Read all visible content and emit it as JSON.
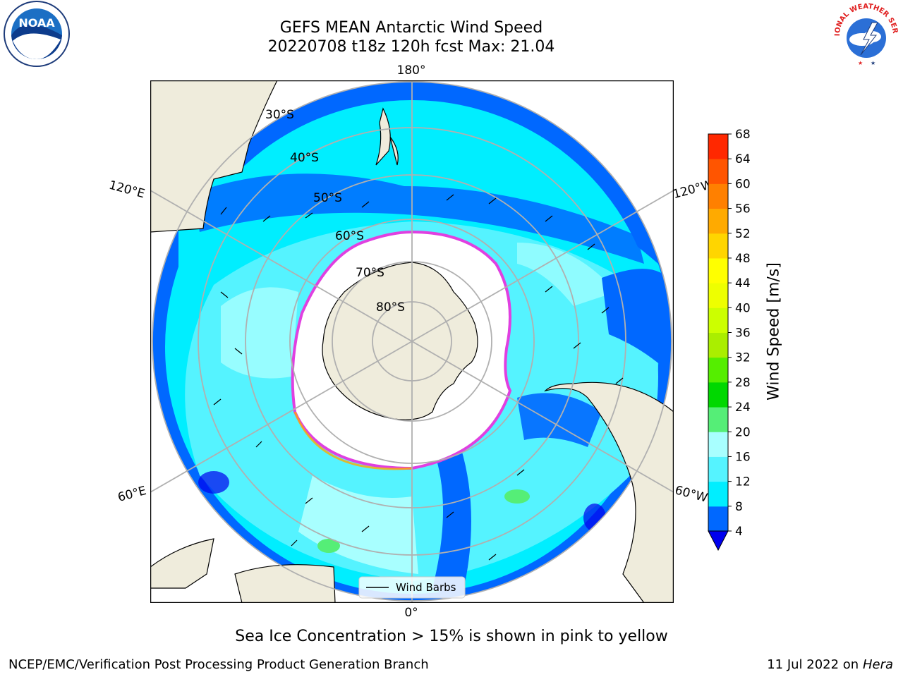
{
  "title": {
    "line1": "GEFS MEAN Antarctic Wind Speed",
    "line2": "20220708 t18z 120h fcst   Max: 21.04"
  },
  "map": {
    "projection": "south-polar-stereographic",
    "longitude_labels": [
      "180°",
      "120°E",
      "120°W",
      "60°E",
      "60°W",
      "0°"
    ],
    "latitude_labels": [
      "30°S",
      "40°S",
      "50°S",
      "60°S",
      "70°S",
      "80°S"
    ],
    "colors": {
      "land": "#efecdc",
      "sea_ice": "#ffffff",
      "ice_edge": "#e040e0",
      "grid": "#b0b0b0",
      "wind_4_8": "#0068ff",
      "wind_8_12": "#00eeff",
      "wind_12_16": "#55f3ff",
      "wind_16_20": "#a8ffff",
      "wind_20_24": "#55ee77"
    },
    "legend": {
      "label": "Wind Barbs",
      "placement": "bottom-center"
    }
  },
  "colorbar": {
    "label": "Wind Speed [m/s]",
    "ticks": [
      "4",
      "8",
      "12",
      "16",
      "20",
      "24",
      "28",
      "32",
      "36",
      "40",
      "44",
      "48",
      "52",
      "56",
      "60",
      "64",
      "68"
    ],
    "colors": [
      "#0068ff",
      "#00eeff",
      "#55f3ff",
      "#a8ffff",
      "#55ee77",
      "#00d800",
      "#55ee00",
      "#aaee00",
      "#ccff00",
      "#eeff00",
      "#ffff00",
      "#ffd500",
      "#ffaa00",
      "#ff8000",
      "#ff5500",
      "#ff2800",
      "#ff0000"
    ],
    "extend_min_color": "#0000ee"
  },
  "caption": "Sea Ice Concentration > 15% is shown in pink to yellow",
  "footer": {
    "left": "NCEP/EMC/Verification Post Processing Product Generation Branch",
    "right_date": "11 Jul 2022 on ",
    "right_host": "Hera"
  },
  "logos": {
    "noaa": {
      "text": "NOAA",
      "icon": "noaa-logo"
    },
    "nws": {
      "icon": "nws-logo",
      "ring_text": "NATIONAL WEATHER SERVICE"
    }
  }
}
